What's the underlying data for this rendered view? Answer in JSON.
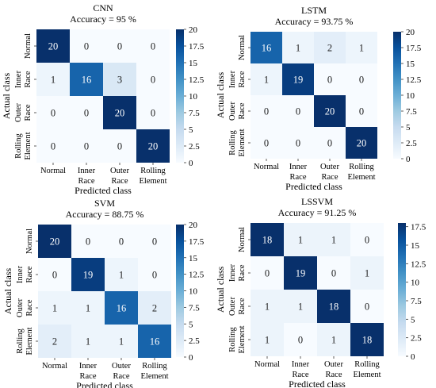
{
  "chart_data": [
    {
      "type": "heatmap",
      "title": "CNN",
      "subtitle": "Accuracy = 95 %",
      "xlabel": "Predicted class",
      "ylabel": "Actual class",
      "x_tick_labels": [
        [
          "Normal"
        ],
        [
          "Inner",
          "Race"
        ],
        [
          "Outer",
          "Race"
        ],
        [
          "Rolling",
          "Element"
        ]
      ],
      "y_tick_labels": [
        [
          "Normal"
        ],
        [
          "Inner",
          "Race"
        ],
        [
          "Outer",
          "Race"
        ],
        [
          "Rolling",
          "Element"
        ]
      ],
      "values": [
        [
          20,
          0,
          0,
          0
        ],
        [
          1,
          16,
          3,
          0
        ],
        [
          0,
          0,
          20,
          0
        ],
        [
          0,
          0,
          0,
          20
        ]
      ],
      "colorbar": {
        "min": 0,
        "max": 20,
        "ticks": [
          "0",
          "2.5",
          "5",
          "7.5",
          "10",
          "12.5",
          "15",
          "17.5",
          "20"
        ]
      }
    },
    {
      "type": "heatmap",
      "title": "LSTM",
      "subtitle": "Accuracy = 93.75 %",
      "xlabel": "Predicted class",
      "ylabel": "Actual class",
      "x_tick_labels": [
        [
          "Normal"
        ],
        [
          "Inner",
          "Race"
        ],
        [
          "Outer",
          "Race"
        ],
        [
          "Rolling",
          "Element"
        ]
      ],
      "y_tick_labels": [
        [
          "Normal"
        ],
        [
          "Inner",
          "Race"
        ],
        [
          "Outer",
          "Race"
        ],
        [
          "Rolling",
          "Element"
        ]
      ],
      "values": [
        [
          16,
          1,
          2,
          1
        ],
        [
          1,
          19,
          0,
          0
        ],
        [
          0,
          0,
          20,
          0
        ],
        [
          0,
          0,
          0,
          20
        ]
      ],
      "colorbar": {
        "min": 0,
        "max": 20,
        "ticks": [
          "0",
          "2.5",
          "5",
          "7.5",
          "10",
          "12.5",
          "15",
          "17.5",
          "20"
        ]
      }
    },
    {
      "type": "heatmap",
      "title": "SVM",
      "subtitle": "Accuracy = 88.75 %",
      "xlabel": "Predicted class",
      "ylabel": "Actual class",
      "x_tick_labels": [
        [
          "Normal"
        ],
        [
          "Inner",
          "Race"
        ],
        [
          "Outer",
          "Race"
        ],
        [
          "Rolling",
          "Element"
        ]
      ],
      "y_tick_labels": [
        [
          "Normal"
        ],
        [
          "Inner",
          "Race"
        ],
        [
          "Outer",
          "Race"
        ],
        [
          "Rolling",
          "Element"
        ]
      ],
      "values": [
        [
          20,
          0,
          0,
          0
        ],
        [
          0,
          19,
          1,
          0
        ],
        [
          1,
          1,
          16,
          2
        ],
        [
          2,
          1,
          1,
          16
        ]
      ],
      "colorbar": {
        "min": 0,
        "max": 20,
        "ticks": [
          "0",
          "2.5",
          "5",
          "7.5",
          "10",
          "12.5",
          "15",
          "17.5",
          "20"
        ]
      }
    },
    {
      "type": "heatmap",
      "title": "",
      "subtitle": "LSSVM\nAccuracy = 91.25 %",
      "title_lines": [
        "LSSVM",
        "Accuracy = 91.25 %"
      ],
      "xlabel": "Predicted class",
      "ylabel": "Actual class",
      "x_tick_labels": [
        [
          "Normal"
        ],
        [
          "Inner",
          "Race"
        ],
        [
          "Outer",
          "Race"
        ],
        [
          "Rolling",
          "Element"
        ]
      ],
      "y_tick_labels": [
        [
          "Normal"
        ],
        [
          "Inner",
          "Race"
        ],
        [
          "Outer",
          "Race"
        ],
        [
          "Rolling",
          "Element"
        ]
      ],
      "values": [
        [
          18,
          1,
          1,
          0
        ],
        [
          0,
          19,
          0,
          1
        ],
        [
          1,
          1,
          18,
          0
        ],
        [
          1,
          0,
          1,
          18
        ]
      ],
      "colorbar": {
        "min": 0,
        "max": 18,
        "ticks": [
          "0",
          "2.5",
          "5",
          "7.5",
          "10",
          "12.5",
          "15",
          "17.5"
        ]
      }
    }
  ]
}
